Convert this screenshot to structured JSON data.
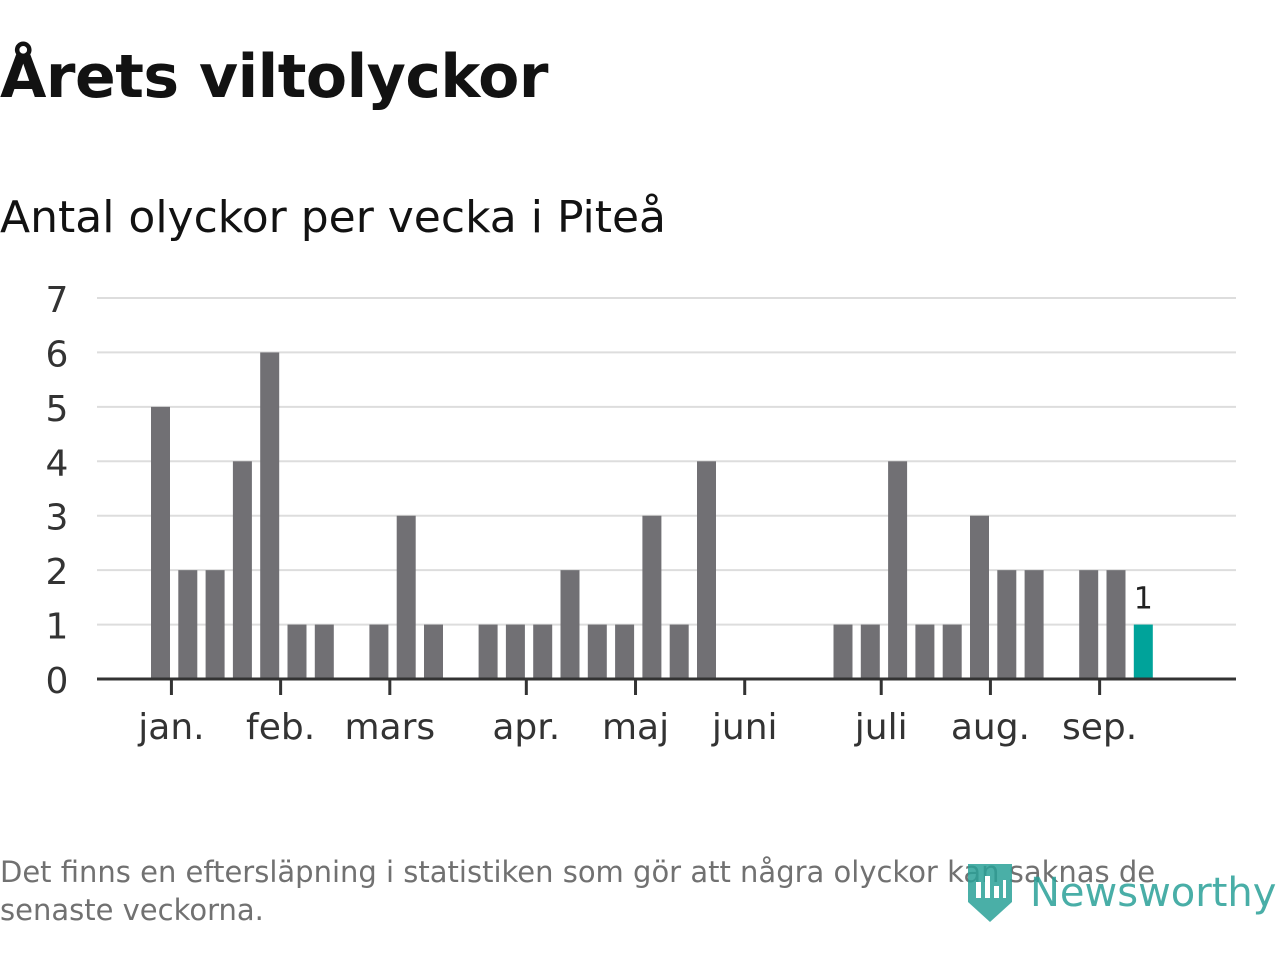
{
  "header": {
    "title": "Årets viltolyckor",
    "subtitle": "Antal olyckor per vecka i Piteå"
  },
  "footer": {
    "note": "Det finns en eftersläpning i statistiken som gör att några olyckor kan saknas de senaste veckorna.",
    "brand": "Newsworthy"
  },
  "colors": {
    "bar": "#717074",
    "highlight": "#00a39a",
    "grid": "#dddddd",
    "axis": "#333333",
    "text": "#333333",
    "brand": "#2aa198"
  },
  "chart_data": {
    "type": "bar",
    "title": "Antal olyckor per vecka i Piteå",
    "xlabel": "",
    "ylabel": "",
    "ylim": [
      0,
      7
    ],
    "yticks": [
      0,
      1,
      2,
      3,
      4,
      5,
      6,
      7
    ],
    "grid": true,
    "week_start": 1,
    "week_end": 38,
    "weeks": [
      2,
      3,
      4,
      5,
      6,
      7,
      8,
      9,
      10,
      11,
      12,
      13,
      14,
      15,
      16,
      17,
      18,
      19,
      20,
      21,
      22,
      23,
      24,
      25,
      26,
      27,
      28,
      29,
      30,
      31,
      32,
      33,
      34,
      35,
      36,
      37,
      38
    ],
    "values": [
      5,
      2,
      2,
      4,
      6,
      1,
      1,
      0,
      1,
      3,
      1,
      0,
      1,
      1,
      1,
      2,
      1,
      1,
      3,
      1,
      4,
      0,
      0,
      0,
      0,
      1,
      1,
      4,
      1,
      1,
      3,
      2,
      2,
      0,
      2,
      2,
      1
    ],
    "highlight_index": 36,
    "highlight_label": "1",
    "month_ticks": [
      {
        "label": "jan.",
        "week": 2.4
      },
      {
        "label": "feb.",
        "week": 6.4
      },
      {
        "label": "mars",
        "week": 10.4
      },
      {
        "label": "apr.",
        "week": 15.4
      },
      {
        "label": "maj",
        "week": 19.4
      },
      {
        "label": "juni",
        "week": 23.4
      },
      {
        "label": "juli",
        "week": 28.4
      },
      {
        "label": "aug.",
        "week": 32.4
      },
      {
        "label": "sep.",
        "week": 36.4
      }
    ]
  }
}
